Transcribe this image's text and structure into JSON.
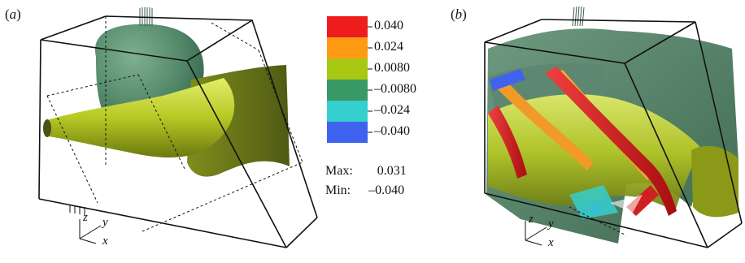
{
  "panels": [
    {
      "label": "(a)"
    },
    {
      "label": "(b)"
    }
  ],
  "axes": {
    "z": "z",
    "y": "y",
    "x": "x"
  },
  "legend": {
    "entries": [
      {
        "value": "0.040",
        "color": "#ee1c1c"
      },
      {
        "value": "0.024",
        "color": "#ff9a14"
      },
      {
        "value": "0.0080",
        "color": "#a9c811"
      },
      {
        "value": "–0.0080",
        "color": "#3a9a66"
      },
      {
        "value": "–0.024",
        "color": "#36cfcf"
      },
      {
        "value": "–0.040",
        "color": "#3f63ee"
      }
    ],
    "max_label": "Max:",
    "max_value": "0.031",
    "min_label": "Min:",
    "min_value": "–0.040"
  }
}
